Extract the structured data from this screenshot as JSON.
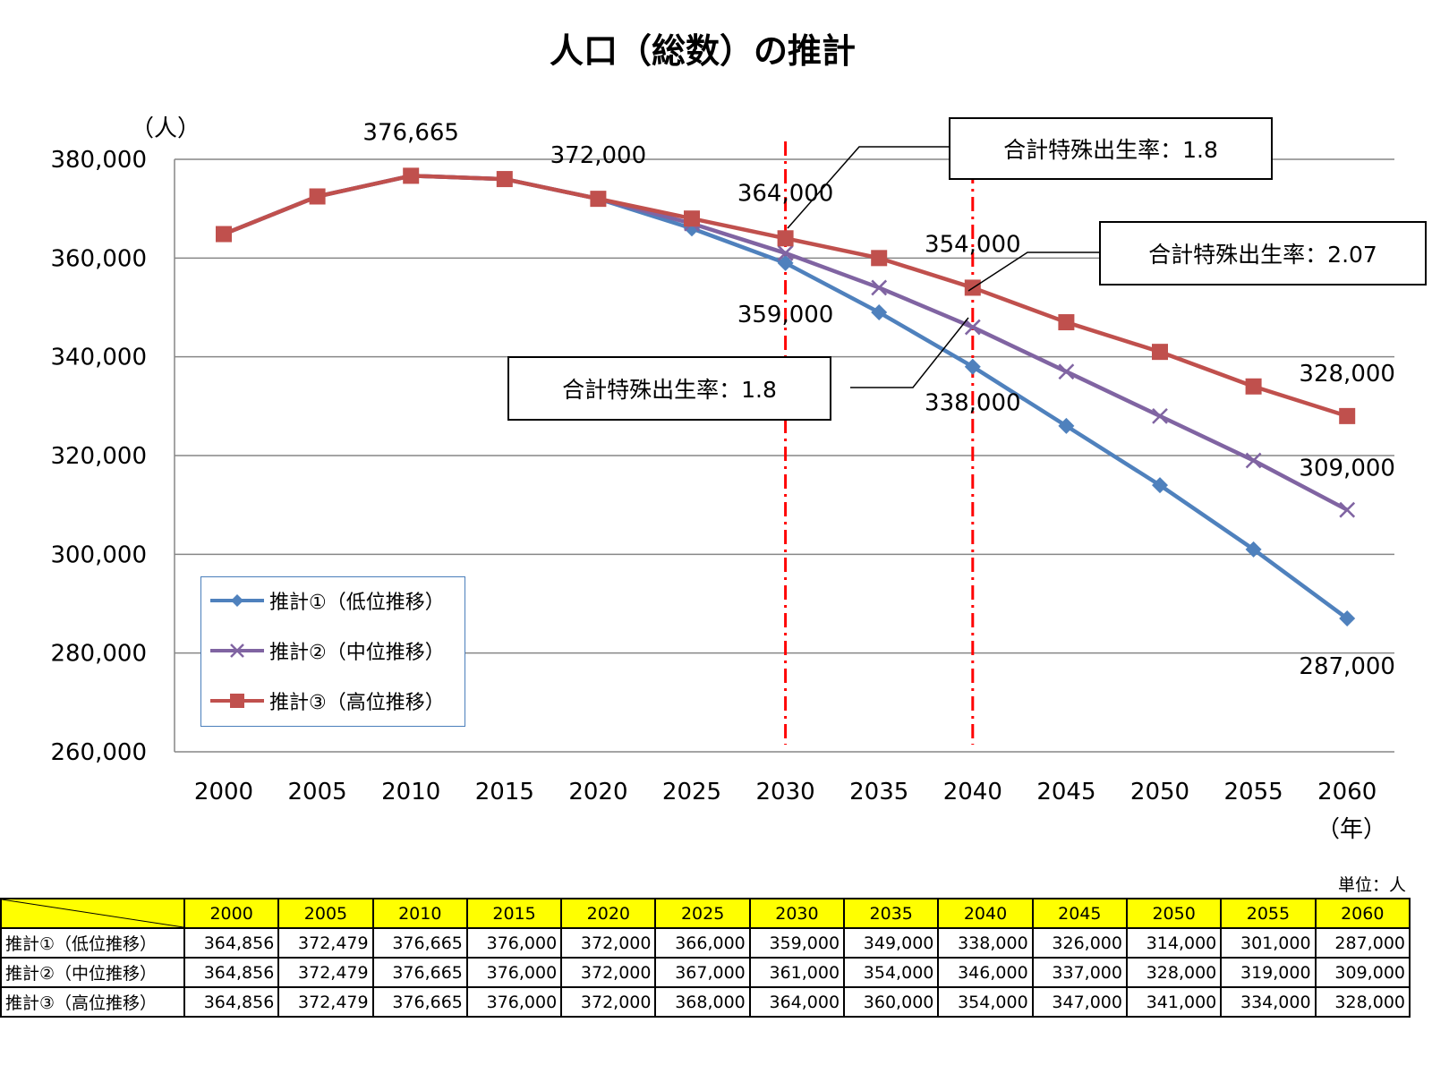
{
  "chart_data": {
    "type": "line",
    "title": "人口（総数）の推計",
    "ylabel": "（人）",
    "xlabel": "（年）",
    "ylim": [
      260000,
      380000
    ],
    "yticks": [
      260000,
      280000,
      300000,
      320000,
      340000,
      360000,
      380000
    ],
    "ytick_labels": [
      "260,000",
      "280,000",
      "300,000",
      "320,000",
      "340,000",
      "360,000",
      "380,000"
    ],
    "categories": [
      "2000",
      "2005",
      "2010",
      "2015",
      "2020",
      "2025",
      "2030",
      "2035",
      "2040",
      "2045",
      "2050",
      "2055",
      "2060"
    ],
    "grid": true,
    "legend_position": "bottom-left",
    "series": [
      {
        "name": "推計①（低位推移）",
        "color": "#4f81bd",
        "marker": "diamond",
        "values": [
          364856,
          372479,
          376665,
          376000,
          372000,
          366000,
          359000,
          349000,
          338000,
          326000,
          314000,
          301000,
          287000
        ]
      },
      {
        "name": "推計②（中位推移）",
        "color": "#8064a2",
        "marker": "x",
        "values": [
          364856,
          372479,
          376665,
          376000,
          372000,
          367000,
          361000,
          354000,
          346000,
          337000,
          328000,
          319000,
          309000
        ]
      },
      {
        "name": "推計③（高位推移）",
        "color": "#c0504d",
        "marker": "square",
        "values": [
          364856,
          372479,
          376665,
          376000,
          372000,
          368000,
          364000,
          360000,
          354000,
          347000,
          341000,
          334000,
          328000
        ]
      }
    ],
    "annotations": [
      {
        "text": "376,665",
        "category": "2010",
        "value": 376665
      },
      {
        "text": "372,000",
        "category": "2020",
        "value": 372000
      },
      {
        "text": "364,000",
        "category": "2030",
        "value": 364000
      },
      {
        "text": "359,000",
        "category": "2030",
        "value": 359000
      },
      {
        "text": "354,000",
        "category": "2040",
        "value": 354000
      },
      {
        "text": "338,000",
        "category": "2040",
        "value": 338000
      },
      {
        "text": "328,000",
        "category": "2060",
        "value": 328000
      },
      {
        "text": "309,000",
        "category": "2060",
        "value": 309000
      },
      {
        "text": "287,000",
        "category": "2060",
        "value": 287000
      }
    ],
    "reference_lines": [
      {
        "category": "2030",
        "color": "#ff0000",
        "style": "dash-dot"
      },
      {
        "category": "2040",
        "color": "#ff0000",
        "style": "dash-dot"
      }
    ],
    "callouts": [
      {
        "text": "合計特殊出生率：1.8"
      },
      {
        "text": "合計特殊出生率：2.07"
      },
      {
        "text": "合計特殊出生率：1.8"
      }
    ]
  },
  "table": {
    "unit": "単位：人",
    "years": [
      "2000",
      "2005",
      "2010",
      "2015",
      "2020",
      "2025",
      "2030",
      "2035",
      "2040",
      "2045",
      "2050",
      "2055",
      "2060"
    ],
    "rows": [
      {
        "label": "推計①（低位推移）",
        "values": [
          "364,856",
          "372,479",
          "376,665",
          "376,000",
          "372,000",
          "366,000",
          "359,000",
          "349,000",
          "338,000",
          "326,000",
          "314,000",
          "301,000",
          "287,000"
        ]
      },
      {
        "label": "推計②（中位推移）",
        "values": [
          "364,856",
          "372,479",
          "376,665",
          "376,000",
          "372,000",
          "367,000",
          "361,000",
          "354,000",
          "346,000",
          "337,000",
          "328,000",
          "319,000",
          "309,000"
        ]
      },
      {
        "label": "推計③（高位推移）",
        "values": [
          "364,856",
          "372,479",
          "376,665",
          "376,000",
          "372,000",
          "368,000",
          "364,000",
          "360,000",
          "354,000",
          "347,000",
          "341,000",
          "334,000",
          "328,000"
        ]
      }
    ]
  }
}
